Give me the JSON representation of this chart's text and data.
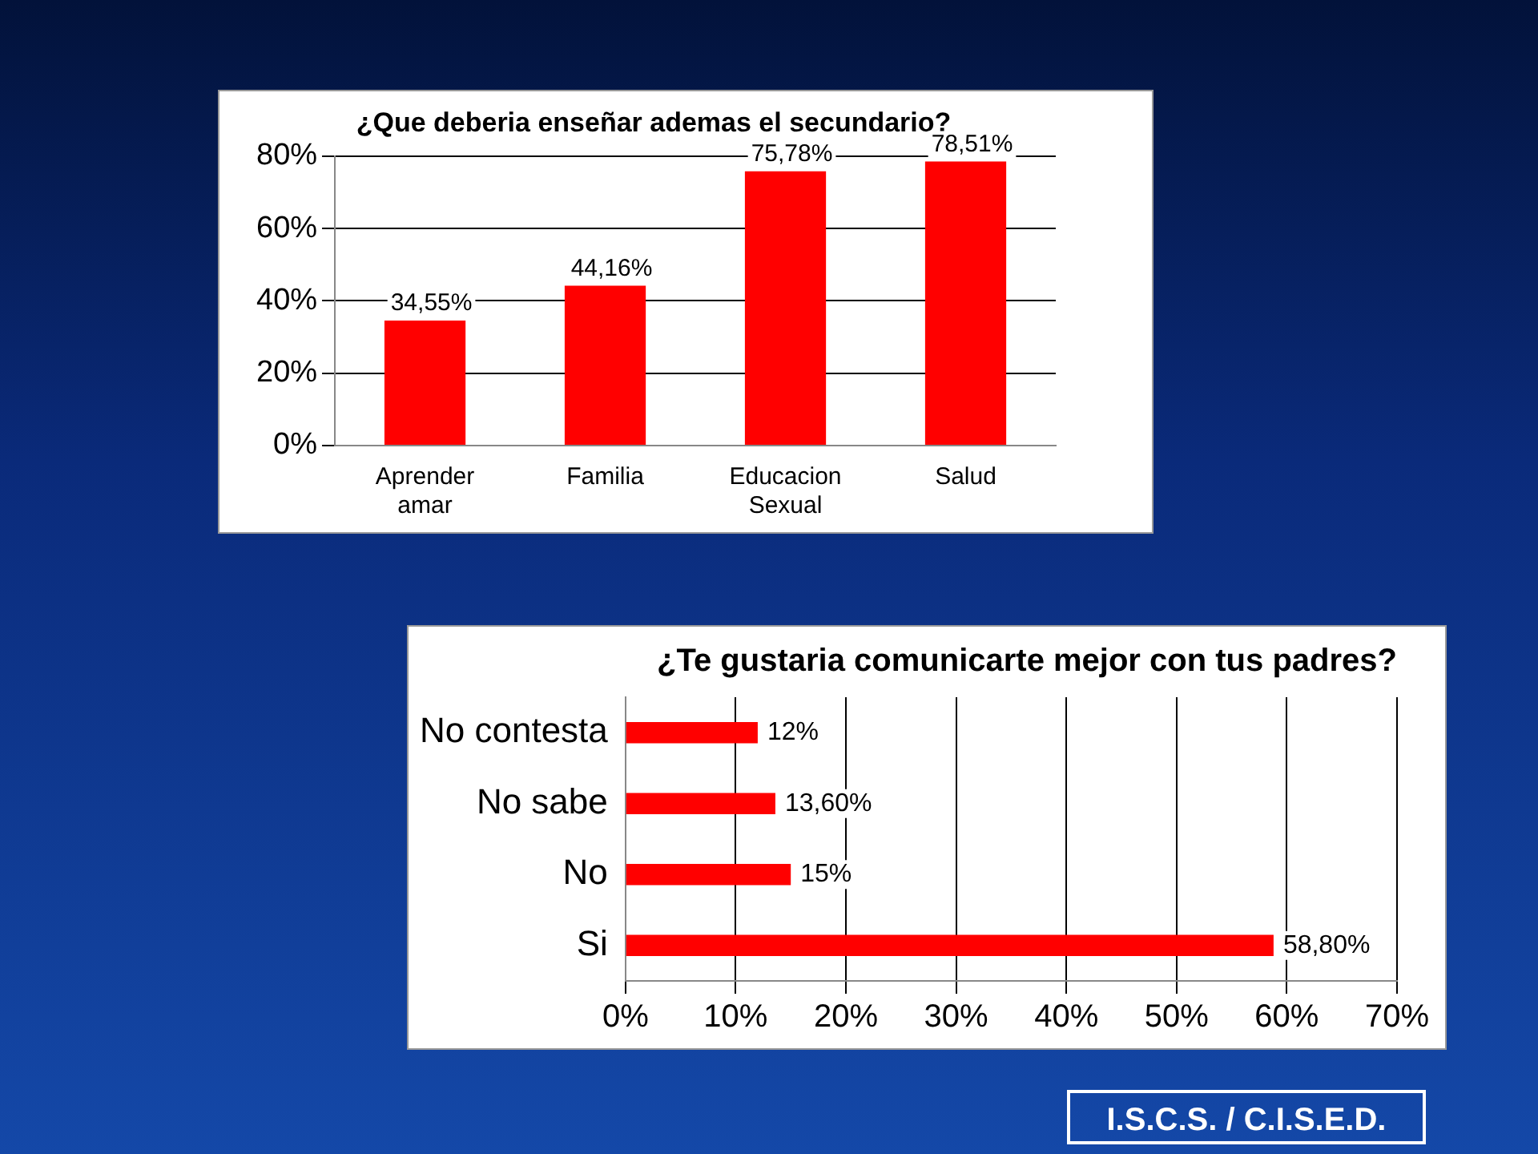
{
  "chart_data": [
    {
      "type": "bar",
      "title": "¿Que deberia enseñar ademas el secundario?",
      "categories": [
        "Aprender amar",
        "Familia",
        "Educacion Sexual",
        "Salud"
      ],
      "values": [
        34.55,
        44.16,
        75.78,
        78.51
      ],
      "color": "#ff0000",
      "value_labels": [
        "34,55%",
        "44,16%",
        "75,78%",
        "78,51%"
      ],
      "ylim": [
        0,
        80
      ],
      "yticks": [
        {
          "value": 0,
          "label": "0%"
        },
        {
          "value": 20,
          "label": "20%"
        },
        {
          "value": 40,
          "label": "40%"
        },
        {
          "value": 60,
          "label": "60%"
        },
        {
          "value": 80,
          "label": "80%"
        }
      ],
      "grid": "y",
      "legend": false
    },
    {
      "type": "bar",
      "orientation": "horizontal",
      "title": "¿Te gustaria comunicarte mejor con tus padres?",
      "categories": [
        "No contesta",
        "No sabe",
        "No",
        "Si"
      ],
      "values": [
        12,
        13.6,
        15,
        58.8
      ],
      "color": "#ff0000",
      "value_labels": [
        "12%",
        "13,60%",
        "15%",
        "58,80%"
      ],
      "xlim": [
        0,
        70
      ],
      "xticks": [
        {
          "value": 0,
          "label": "0%"
        },
        {
          "value": 10,
          "label": "10%"
        },
        {
          "value": 20,
          "label": "20%"
        },
        {
          "value": 30,
          "label": "30%"
        },
        {
          "value": 40,
          "label": "40%"
        },
        {
          "value": 50,
          "label": "50%"
        },
        {
          "value": 60,
          "label": "60%"
        },
        {
          "value": 70,
          "label": "70%"
        }
      ],
      "grid": "x",
      "legend": false,
      "annotations": [
        "I.S.C.S. / C.I.S.E.D."
      ]
    }
  ]
}
